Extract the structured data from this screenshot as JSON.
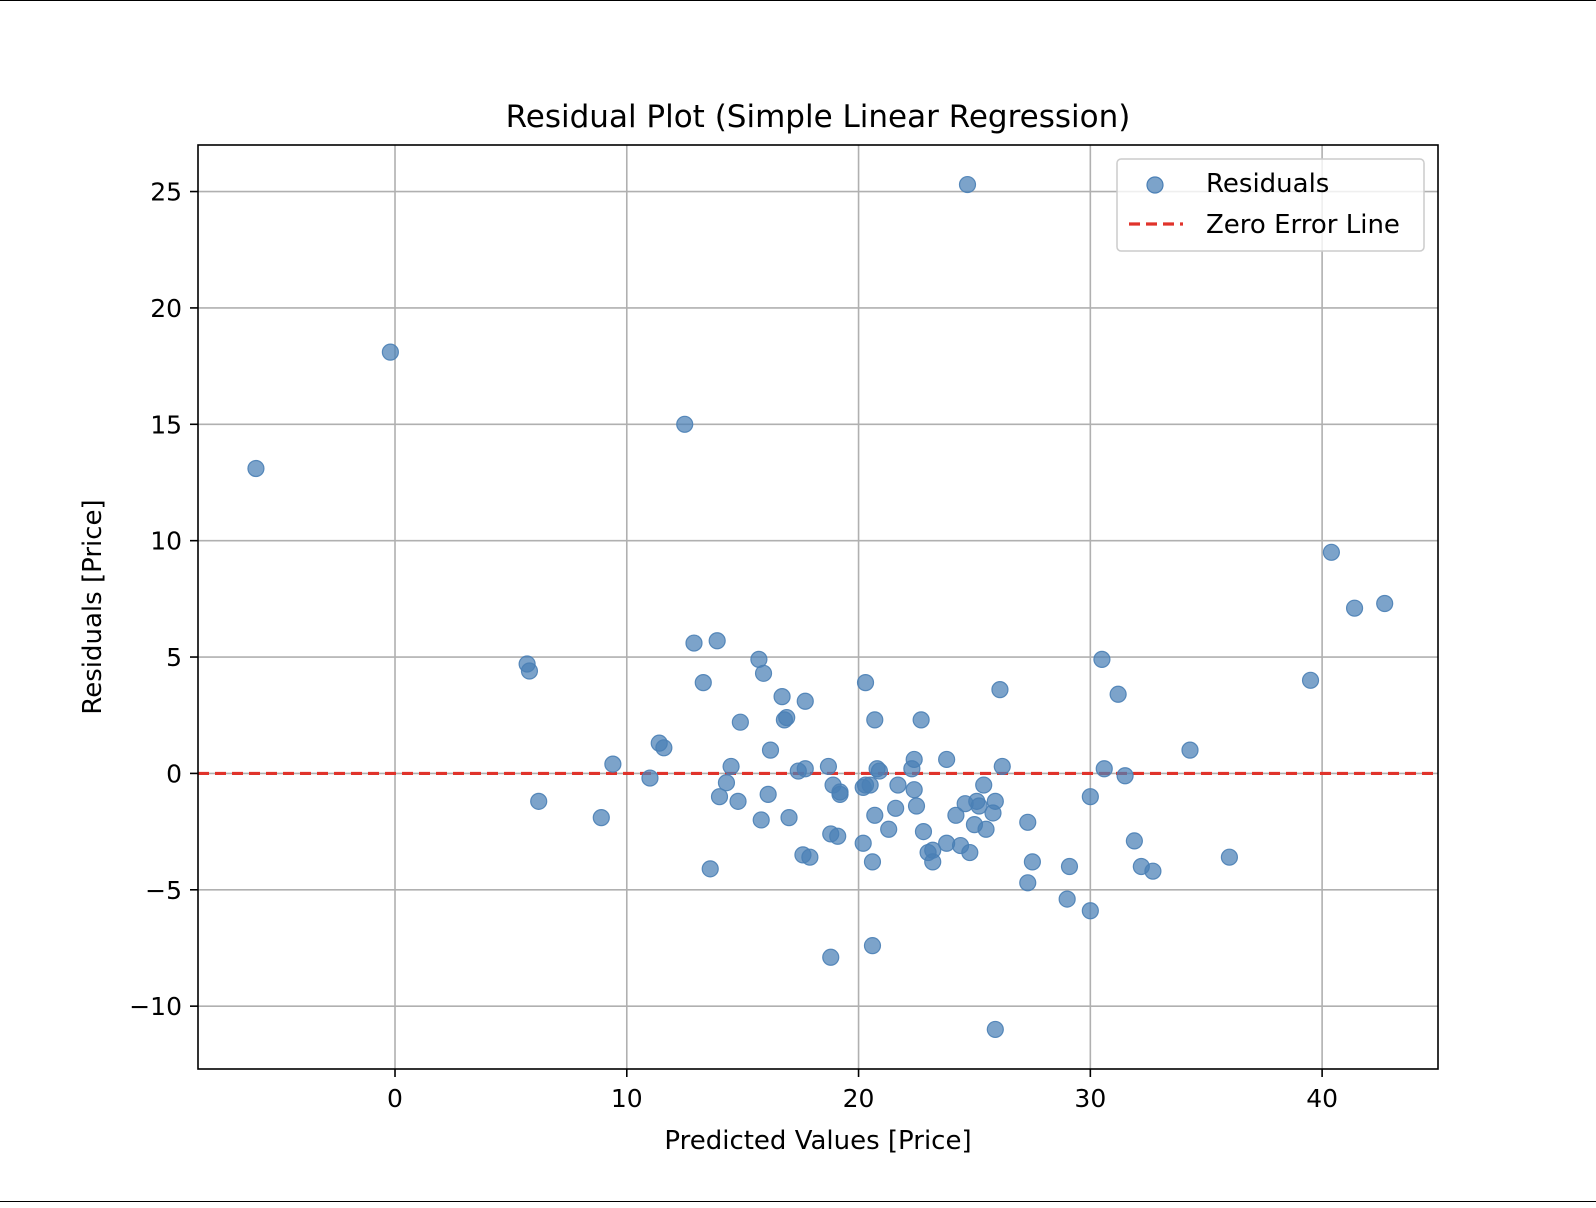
{
  "chart_data": {
    "type": "scatter",
    "title": "Residual Plot (Simple Linear Regression)",
    "xlabel": "Predicted Values [Price]",
    "ylabel": "Residuals [Price]",
    "xlim": [
      -8.5,
      45
    ],
    "ylim": [
      -12.7,
      27
    ],
    "xticks": [
      0,
      10,
      20,
      30,
      40
    ],
    "yticks": [
      -10,
      -5,
      0,
      5,
      10,
      15,
      20,
      25
    ],
    "xtick_labels": [
      "0",
      "10",
      "20",
      "30",
      "40"
    ],
    "ytick_labels": [
      "−10",
      "−5",
      "0",
      "5",
      "10",
      "15",
      "20",
      "25"
    ],
    "grid": true,
    "legend_position": "top-right",
    "series": [
      {
        "name": "Residuals",
        "kind": "scatter",
        "color": "#4A7FB5",
        "points": [
          [
            -6.0,
            13.1
          ],
          [
            -0.2,
            18.1
          ],
          [
            12.5,
            15.0
          ],
          [
            24.7,
            25.3
          ],
          [
            5.7,
            4.7
          ],
          [
            5.8,
            4.4
          ],
          [
            6.2,
            -1.2
          ],
          [
            8.9,
            -1.9
          ],
          [
            9.4,
            0.4
          ],
          [
            11.0,
            -0.2
          ],
          [
            11.4,
            1.3
          ],
          [
            11.6,
            1.1
          ],
          [
            12.9,
            5.6
          ],
          [
            13.3,
            3.9
          ],
          [
            13.6,
            -4.1
          ],
          [
            13.9,
            5.7
          ],
          [
            14.0,
            -1.0
          ],
          [
            14.3,
            -0.4
          ],
          [
            14.5,
            0.3
          ],
          [
            14.8,
            -1.2
          ],
          [
            14.9,
            2.2
          ],
          [
            15.7,
            4.9
          ],
          [
            15.8,
            -2.0
          ],
          [
            15.9,
            4.3
          ],
          [
            16.1,
            -0.9
          ],
          [
            16.2,
            1.0
          ],
          [
            16.7,
            3.3
          ],
          [
            16.8,
            2.3
          ],
          [
            16.9,
            2.4
          ],
          [
            17.0,
            -1.9
          ],
          [
            17.4,
            0.1
          ],
          [
            17.6,
            -3.5
          ],
          [
            17.7,
            0.2
          ],
          [
            17.7,
            3.1
          ],
          [
            17.9,
            -3.6
          ],
          [
            18.7,
            0.3
          ],
          [
            18.8,
            -2.6
          ],
          [
            18.8,
            -7.9
          ],
          [
            18.9,
            -0.5
          ],
          [
            19.1,
            -2.7
          ],
          [
            19.2,
            -0.8
          ],
          [
            19.2,
            -0.9
          ],
          [
            20.2,
            -0.6
          ],
          [
            20.2,
            -3.0
          ],
          [
            20.3,
            3.9
          ],
          [
            20.3,
            -0.5
          ],
          [
            20.5,
            -0.5
          ],
          [
            20.6,
            -7.4
          ],
          [
            20.6,
            -3.8
          ],
          [
            20.7,
            -1.8
          ],
          [
            20.7,
            2.3
          ],
          [
            20.8,
            0.2
          ],
          [
            20.9,
            0.1
          ],
          [
            21.3,
            -2.4
          ],
          [
            21.6,
            -1.5
          ],
          [
            21.7,
            -0.5
          ],
          [
            22.3,
            0.2
          ],
          [
            22.4,
            -0.7
          ],
          [
            22.4,
            0.6
          ],
          [
            22.5,
            -1.4
          ],
          [
            22.7,
            2.3
          ],
          [
            22.8,
            -2.5
          ],
          [
            23.0,
            -3.4
          ],
          [
            23.2,
            -3.3
          ],
          [
            23.2,
            -3.8
          ],
          [
            23.8,
            -3.0
          ],
          [
            23.8,
            0.6
          ],
          [
            24.2,
            -1.8
          ],
          [
            24.4,
            -3.1
          ],
          [
            24.6,
            -1.3
          ],
          [
            24.8,
            -3.4
          ],
          [
            25.0,
            -2.2
          ],
          [
            25.1,
            -1.2
          ],
          [
            25.2,
            -1.4
          ],
          [
            25.4,
            -0.5
          ],
          [
            25.5,
            -2.4
          ],
          [
            25.8,
            -1.7
          ],
          [
            25.9,
            -1.2
          ],
          [
            25.9,
            -11.0
          ],
          [
            26.1,
            3.6
          ],
          [
            26.2,
            0.3
          ],
          [
            27.3,
            -2.1
          ],
          [
            27.3,
            -4.7
          ],
          [
            27.5,
            -3.8
          ],
          [
            29.0,
            -5.4
          ],
          [
            29.1,
            -4.0
          ],
          [
            30.0,
            -1.0
          ],
          [
            30.0,
            -5.9
          ],
          [
            30.5,
            4.9
          ],
          [
            30.6,
            0.2
          ],
          [
            31.2,
            3.4
          ],
          [
            31.5,
            -0.1
          ],
          [
            31.9,
            -2.9
          ],
          [
            32.2,
            -4.0
          ],
          [
            32.7,
            -4.2
          ],
          [
            34.3,
            1.0
          ],
          [
            36.0,
            -3.6
          ],
          [
            39.5,
            4.0
          ],
          [
            40.4,
            9.5
          ],
          [
            41.4,
            7.1
          ],
          [
            42.7,
            7.3
          ]
        ]
      },
      {
        "name": "Zero Error Line",
        "kind": "hline",
        "y": 0,
        "color": "#E0332B",
        "style": "dashed"
      }
    ]
  }
}
